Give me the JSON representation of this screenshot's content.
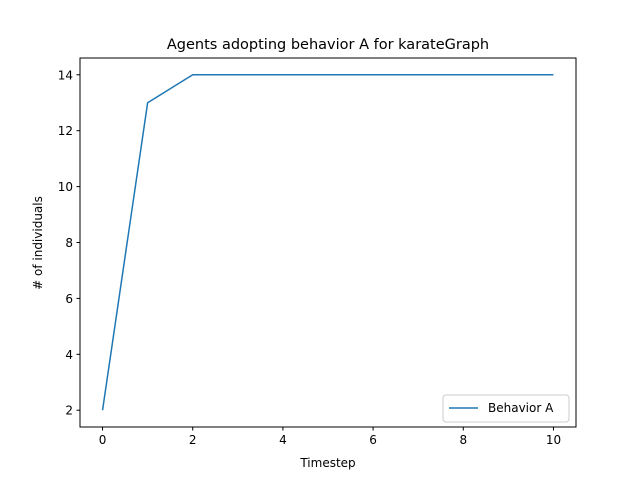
{
  "chart_data": {
    "type": "line",
    "title": "Agents adopting behavior A for karateGraph",
    "xlabel": "Timestep",
    "ylabel": "# of individuals",
    "xlim": [
      -0.5,
      10.5
    ],
    "ylim": [
      1.4,
      14.6
    ],
    "xticks": [
      0,
      2,
      4,
      6,
      8,
      10
    ],
    "yticks": [
      2,
      4,
      6,
      8,
      10,
      12,
      14
    ],
    "grid": false,
    "legend_position": "bottom-right",
    "series": [
      {
        "name": "Behavior A",
        "color": "#1f77b4",
        "x": [
          0,
          1,
          2,
          3,
          4,
          5,
          6,
          7,
          8,
          9,
          10
        ],
        "y": [
          2,
          13,
          14,
          14,
          14,
          14,
          14,
          14,
          14,
          14,
          14
        ]
      }
    ]
  }
}
